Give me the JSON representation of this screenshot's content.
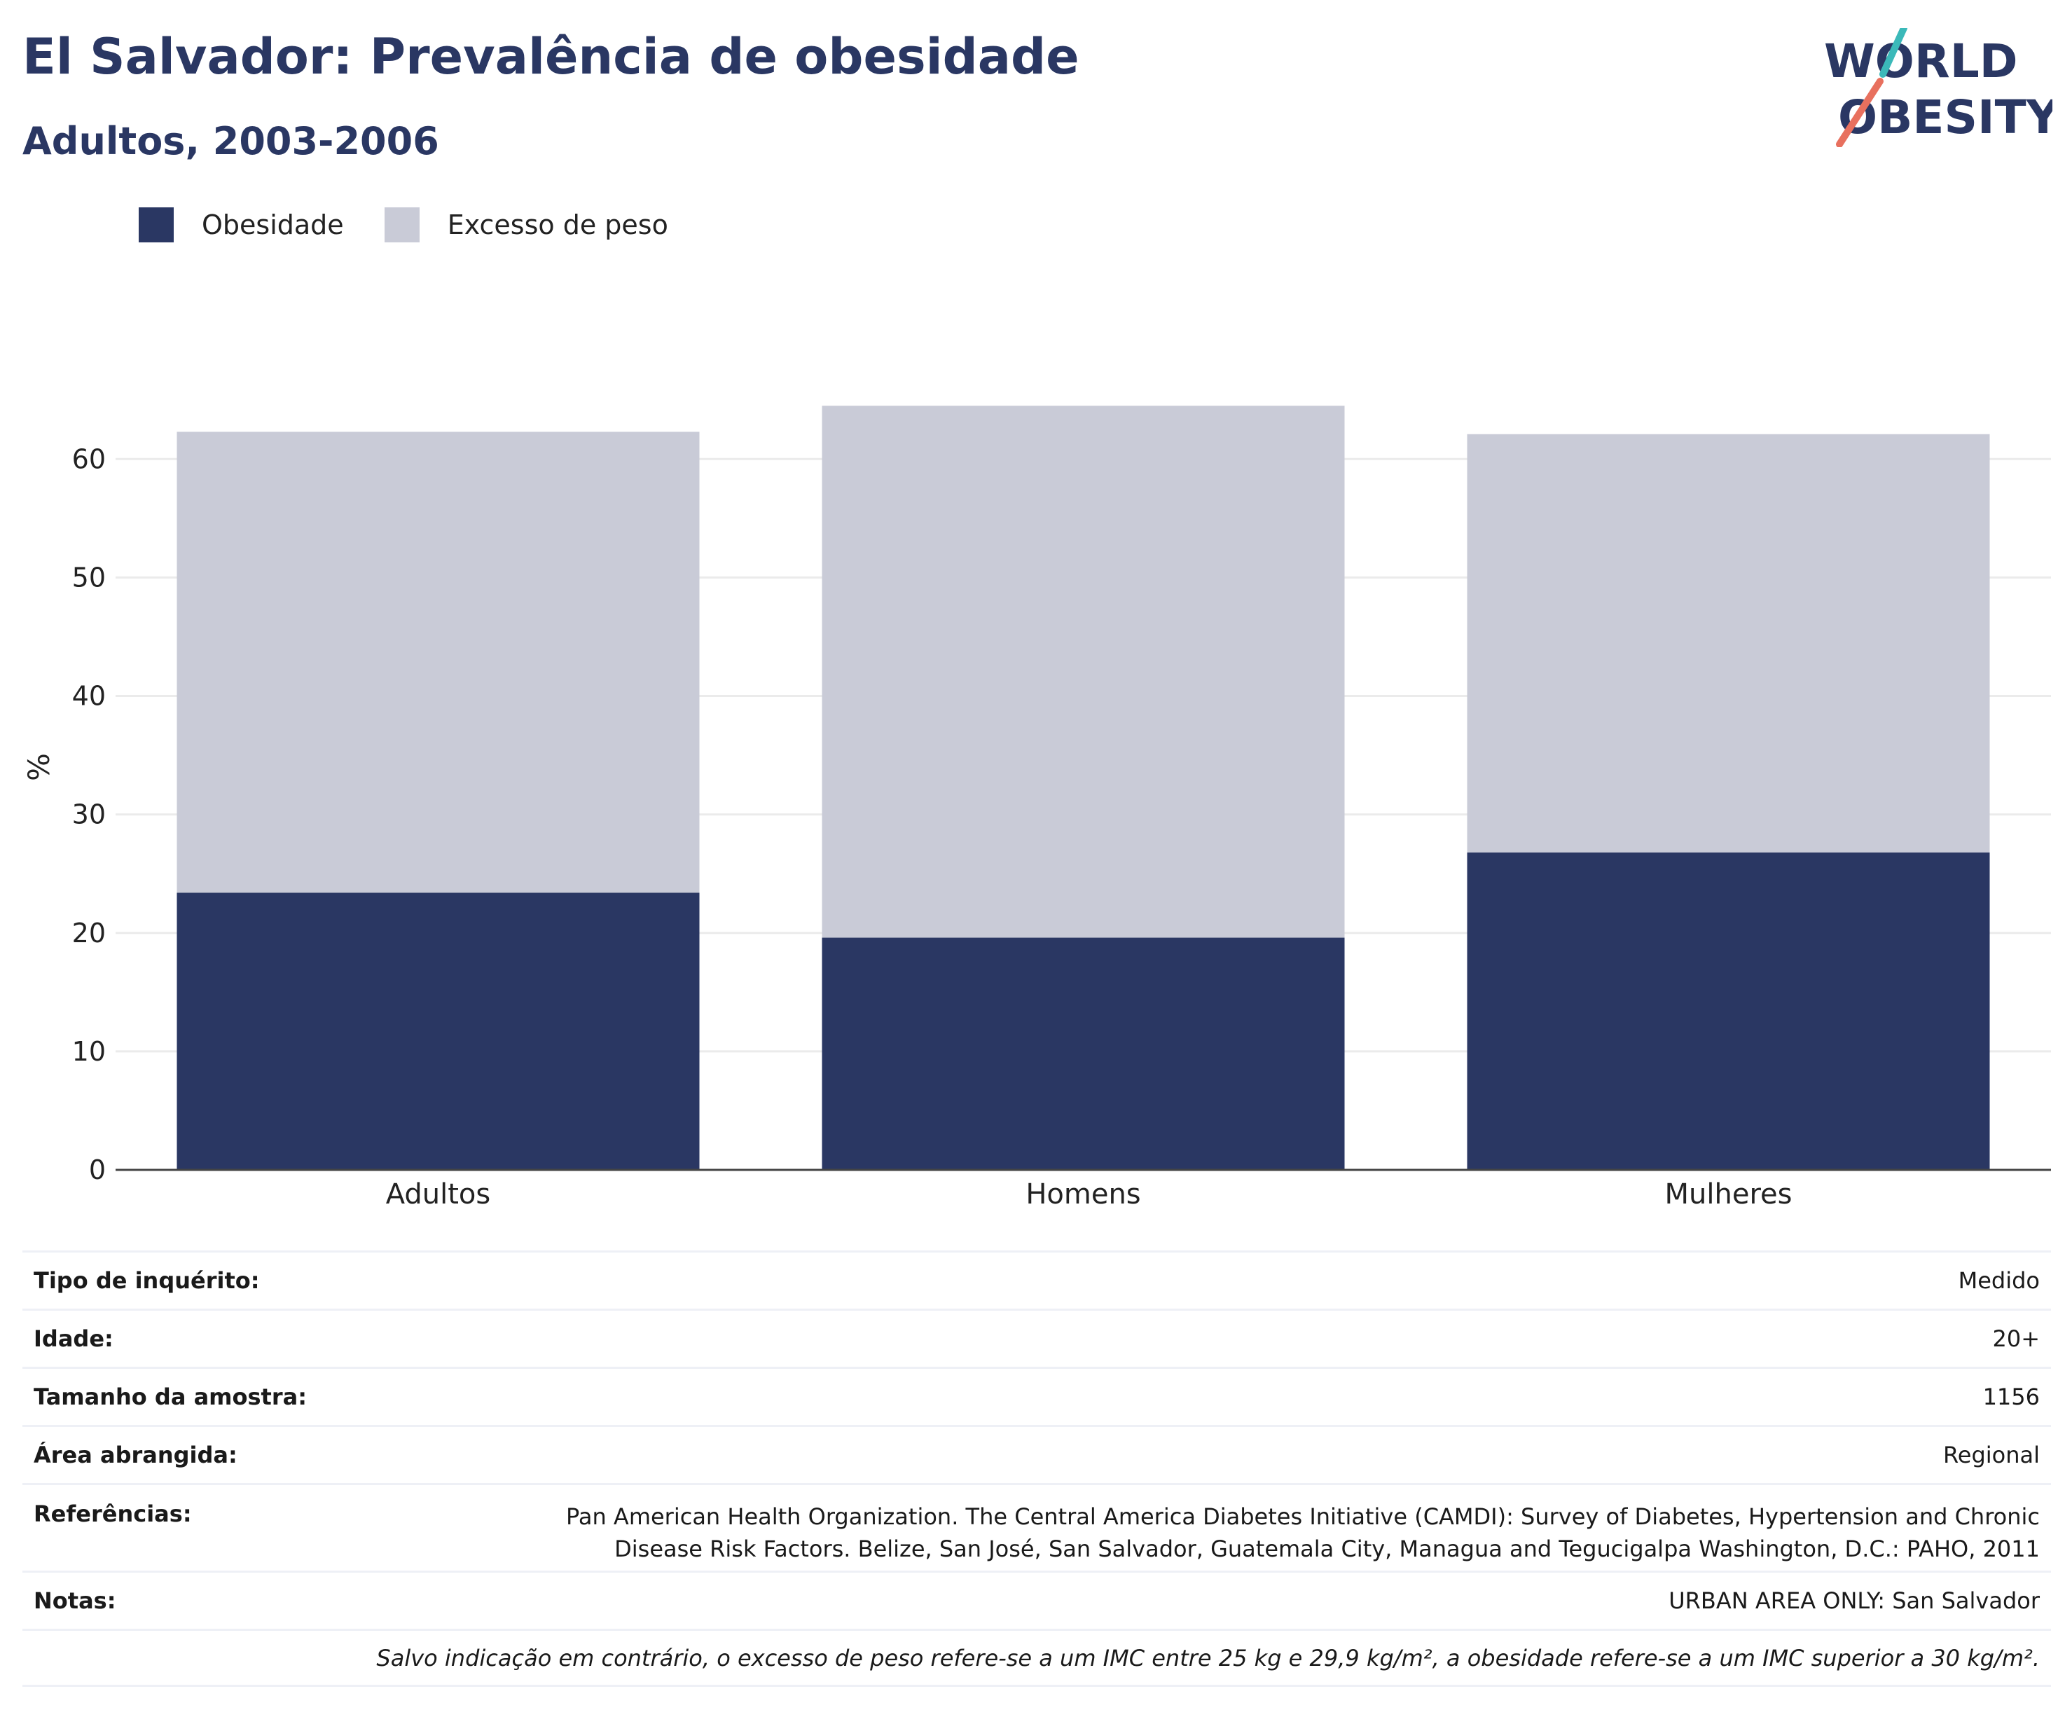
{
  "header": {
    "title": "El Salvador: Prevalência de obesidade",
    "subtitle": "Adultos, 2003-2006"
  },
  "logo": {
    "line1": "WORLD",
    "line2": "OBESITY"
  },
  "legend": [
    {
      "label": "Obesidade",
      "color": "#2a3763"
    },
    {
      "label": "Excesso de peso",
      "color": "#c9cbd7"
    }
  ],
  "chart_data": {
    "type": "bar",
    "stacked": true,
    "categories": [
      "Adultos",
      "Homens",
      "Mulheres"
    ],
    "series": [
      {
        "name": "Obesidade",
        "color": "#2a3763",
        "values": [
          23.4,
          19.6,
          26.8
        ]
      },
      {
        "name": "Excesso de peso",
        "color": "#c9cbd7",
        "values": [
          38.9,
          44.9,
          35.3
        ]
      }
    ],
    "ylabel": "%",
    "ylim": [
      0,
      68
    ],
    "yticks": [
      0,
      10,
      20,
      30,
      40,
      50,
      60
    ],
    "grid": true,
    "legend_position": "top-left"
  },
  "meta": {
    "survey_type": {
      "label": "Tipo de inquérito:",
      "value": "Medido"
    },
    "age": {
      "label": "Idade:",
      "value": "20+"
    },
    "sample_size": {
      "label": "Tamanho da amostra:",
      "value": "1156"
    },
    "area": {
      "label": "Área abrangida:",
      "value": "Regional"
    },
    "references": {
      "label": "Referências:",
      "line1": "Pan American Health Organization. The Central America Diabetes Initiative (CAMDI): Survey of Diabetes, Hypertension and Chronic",
      "line2": "Disease Risk Factors. Belize, San José, San Salvador, Guatemala City, Managua and Tegucigalpa Washington, D.C.: PAHO, 2011"
    },
    "notes": {
      "label": "Notas:",
      "value": "URBAN AREA ONLY: San Salvador"
    },
    "footnote": "Salvo indicação em contrário, o excesso de peso refere-se a um IMC entre 25 kg e 29,9 kg/m², a obesidade refere-se a um IMC superior a 30 kg/m²."
  }
}
